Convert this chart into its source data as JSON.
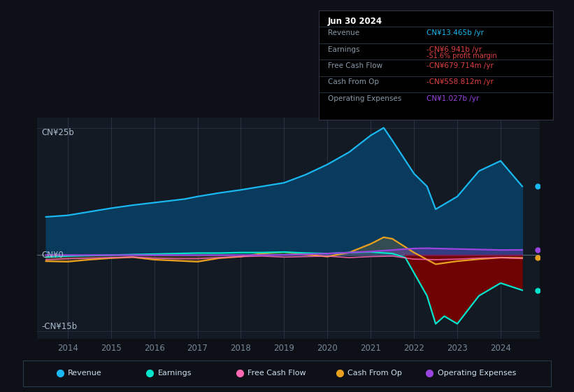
{
  "bg_color": "#0d1117",
  "plot_bg_color": "#131a24",
  "ylabel_top": "CN¥25b",
  "ylabel_bottom": "-CN¥15b",
  "ylabel_zero": "CN¥0",
  "x_years": [
    2014,
    2015,
    2016,
    2017,
    2018,
    2019,
    2020,
    2021,
    2022,
    2023,
    2024
  ],
  "xlim": [
    2013.3,
    2024.9
  ],
  "ylim": [
    -16.5,
    27.0
  ],
  "revenue": {
    "color": "#1ab8f0",
    "fill_color": "#0a3a5c",
    "label": "Revenue",
    "data_x": [
      2013.5,
      2014.0,
      2014.5,
      2015.0,
      2015.5,
      2016.0,
      2016.3,
      2016.7,
      2017.0,
      2017.5,
      2018.0,
      2018.5,
      2019.0,
      2019.5,
      2020.0,
      2020.5,
      2021.0,
      2021.3,
      2021.5,
      2022.0,
      2022.3,
      2022.5,
      2023.0,
      2023.5,
      2024.0,
      2024.5
    ],
    "data_y": [
      7.5,
      7.8,
      8.5,
      9.2,
      9.8,
      10.3,
      10.6,
      11.0,
      11.5,
      12.2,
      12.8,
      13.5,
      14.2,
      15.8,
      17.8,
      20.2,
      23.5,
      25.0,
      22.5,
      16.0,
      13.5,
      9.0,
      11.5,
      16.5,
      18.5,
      13.5
    ]
  },
  "earnings": {
    "color": "#00e5cc",
    "fill_color_neg": "#7a0000",
    "fill_color_pos": "#005533",
    "label": "Earnings",
    "data_x": [
      2013.5,
      2014.0,
      2014.5,
      2015.0,
      2015.5,
      2016.0,
      2016.5,
      2017.0,
      2017.5,
      2018.0,
      2018.5,
      2019.0,
      2019.5,
      2020.0,
      2020.5,
      2021.0,
      2021.5,
      2021.8,
      2022.0,
      2022.3,
      2022.5,
      2022.7,
      2023.0,
      2023.5,
      2024.0,
      2024.5
    ],
    "data_y": [
      -0.4,
      -0.2,
      -0.1,
      0.0,
      0.1,
      0.2,
      0.3,
      0.4,
      0.4,
      0.5,
      0.5,
      0.6,
      0.4,
      0.3,
      0.5,
      0.6,
      0.3,
      -0.5,
      -3.5,
      -8.0,
      -13.5,
      -12.0,
      -13.5,
      -8.0,
      -5.5,
      -6.9
    ]
  },
  "free_cash_flow": {
    "color": "#ff69b4",
    "label": "Free Cash Flow",
    "data_x": [
      2013.5,
      2014.0,
      2014.5,
      2015.0,
      2015.5,
      2016.0,
      2016.5,
      2017.0,
      2017.5,
      2018.0,
      2018.5,
      2019.0,
      2019.5,
      2020.0,
      2020.5,
      2021.0,
      2021.5,
      2022.0,
      2022.5,
      2023.0,
      2023.5,
      2024.0,
      2024.5
    ],
    "data_y": [
      -0.9,
      -0.7,
      -0.6,
      -0.5,
      -0.4,
      -0.6,
      -0.7,
      -0.7,
      -0.5,
      -0.3,
      -0.2,
      -0.4,
      -0.3,
      -0.2,
      -0.5,
      -0.3,
      -0.2,
      -0.8,
      -0.9,
      -0.8,
      -0.6,
      -0.5,
      -0.68
    ]
  },
  "cash_from_op": {
    "color": "#e8a020",
    "label": "Cash From Op",
    "data_x": [
      2013.5,
      2014.0,
      2014.5,
      2015.0,
      2015.5,
      2016.0,
      2016.5,
      2017.0,
      2017.5,
      2018.0,
      2018.5,
      2019.0,
      2019.5,
      2020.0,
      2020.5,
      2021.0,
      2021.3,
      2021.5,
      2022.0,
      2022.5,
      2023.0,
      2023.5,
      2024.0,
      2024.5
    ],
    "data_y": [
      -1.2,
      -1.3,
      -0.9,
      -0.6,
      -0.4,
      -0.9,
      -1.1,
      -1.3,
      -0.6,
      -0.3,
      0.3,
      0.6,
      0.1,
      -0.3,
      0.5,
      2.2,
      3.5,
      3.2,
      0.5,
      -1.8,
      -1.2,
      -0.8,
      -0.5,
      -0.56
    ]
  },
  "operating_expenses": {
    "color": "#9944dd",
    "label": "Operating Expenses",
    "data_x": [
      2013.5,
      2018.5,
      2019.0,
      2019.5,
      2020.0,
      2020.5,
      2021.0,
      2021.5,
      2022.0,
      2022.3,
      2022.5,
      2023.0,
      2023.5,
      2024.0,
      2024.5
    ],
    "data_y": [
      0.0,
      0.0,
      0.05,
      0.15,
      0.3,
      0.5,
      0.7,
      1.0,
      1.3,
      1.35,
      1.3,
      1.2,
      1.1,
      1.0,
      1.027
    ]
  },
  "info_box": {
    "date": "Jun 30 2024",
    "rows": [
      {
        "label": "Revenue",
        "value": "CN¥13.465b /yr",
        "value_color": "#1ab8f0",
        "sub": null
      },
      {
        "label": "Earnings",
        "value": "-CN¥6.941b /yr",
        "value_color": "#e04040",
        "sub": "-51.6% profit margin",
        "sub_color": "#e04040"
      },
      {
        "label": "Free Cash Flow",
        "value": "-CN¥679.714m /yr",
        "value_color": "#e04040",
        "sub": null
      },
      {
        "label": "Cash From Op",
        "value": "-CN¥558.812m /yr",
        "value_color": "#e04040",
        "sub": null
      },
      {
        "label": "Operating Expenses",
        "value": "CN¥1.027b /yr",
        "value_color": "#9944dd",
        "sub": null
      }
    ]
  },
  "legend": [
    {
      "label": "Revenue",
      "color": "#1ab8f0"
    },
    {
      "label": "Earnings",
      "color": "#00e5cc"
    },
    {
      "label": "Free Cash Flow",
      "color": "#ff69b4"
    },
    {
      "label": "Cash From Op",
      "color": "#e8a020"
    },
    {
      "label": "Operating Expenses",
      "color": "#9944dd"
    }
  ]
}
